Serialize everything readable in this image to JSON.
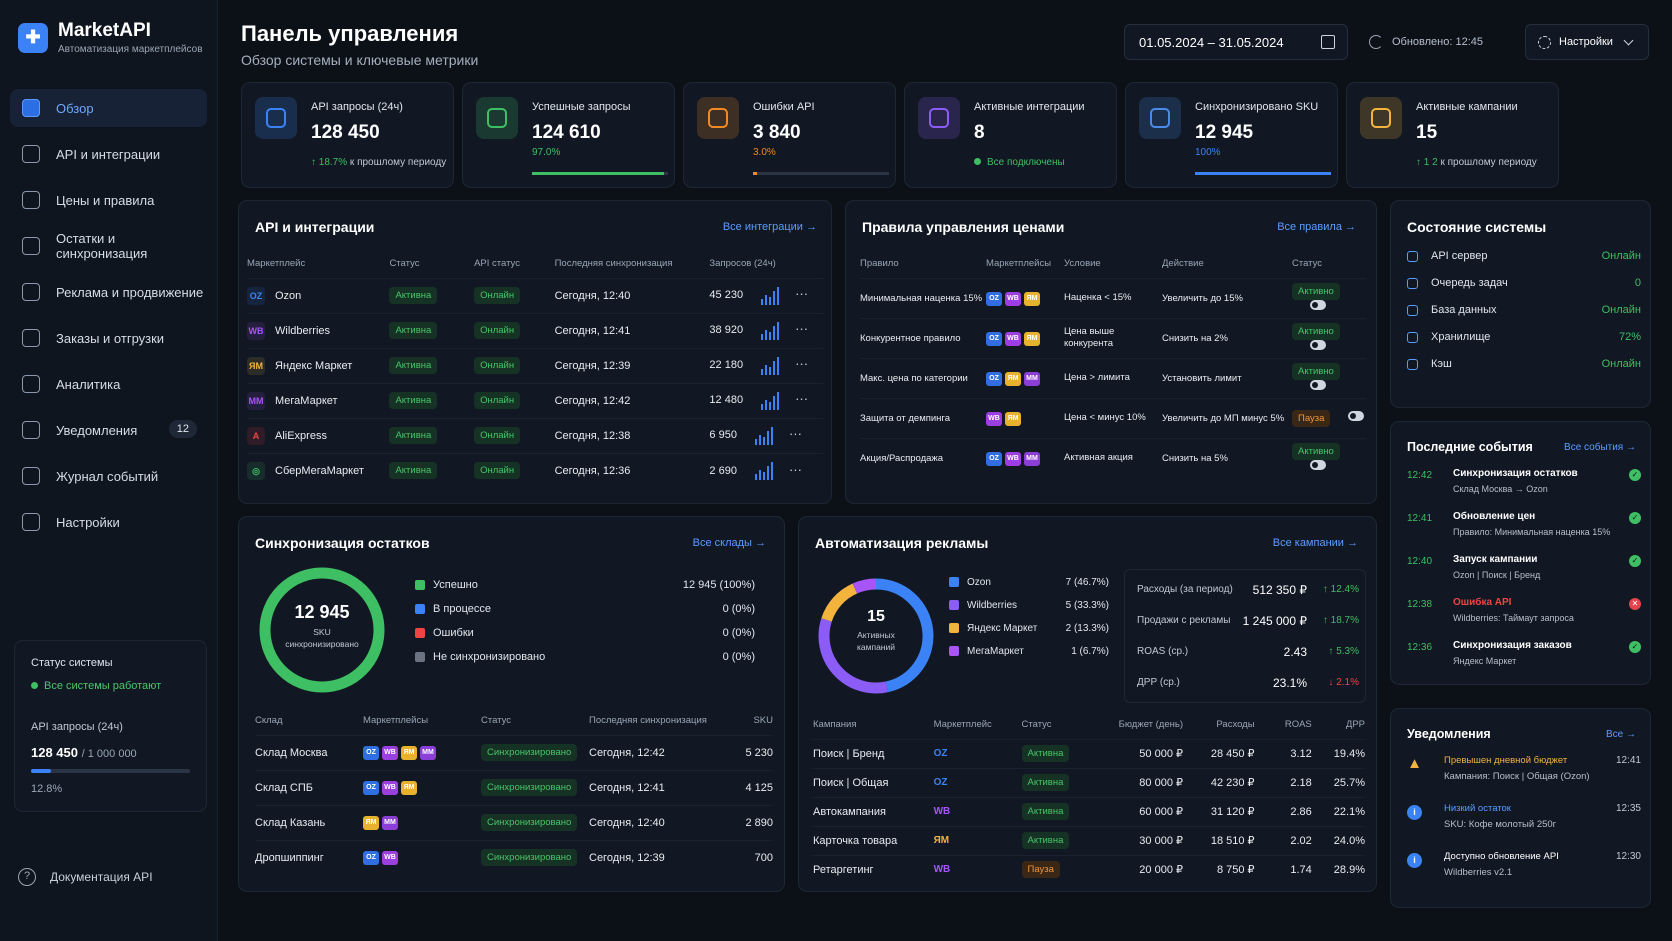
{
  "brand": {
    "name": "MarketAPI",
    "subtitle": "Автоматизация маркетплейсов"
  },
  "nav": [
    {
      "label": "Обзор",
      "icon": "dashboard-icon"
    },
    {
      "label": "API и интеграции",
      "icon": "api-icon"
    },
    {
      "label": "Цены и правила",
      "icon": "price-icon"
    },
    {
      "label": "Остатки и синхронизация",
      "icon": "sync-icon"
    },
    {
      "label": "Реклама и продвижение",
      "icon": "ads-icon"
    },
    {
      "label": "Заказы и отгрузки",
      "icon": "orders-icon"
    },
    {
      "label": "Аналитика",
      "icon": "analytics-icon"
    },
    {
      "label": "Уведомления",
      "icon": "bell-icon",
      "badge": "12"
    },
    {
      "label": "Журнал событий",
      "icon": "log-icon"
    },
    {
      "label": "Настройки",
      "icon": "gear-icon"
    }
  ],
  "sidebar_status": {
    "title": "Статус системы",
    "ok": "Все системы работают",
    "api_label": "API запросы (24ч)",
    "api_value": "128 450",
    "api_limit": "/ 1 000 000",
    "api_pct": "12.8%",
    "api_fraction": 0.128
  },
  "docs_label": "Документация API",
  "header": {
    "title": "Панель управления",
    "subtitle": "Обзор системы и ключевые метрики",
    "date_range": "01.05.2024 – 31.05.2024",
    "updated": "Обновлено: 12:45",
    "settings": "Настройки"
  },
  "kpis": [
    {
      "label": "API запросы (24ч)",
      "value": "128 450",
      "delta": "↑ 18.7%",
      "foot": "к прошлому периоду",
      "color": "#3b82f6",
      "icon": "chart-bar-icon"
    },
    {
      "label": "Успешные запросы",
      "value": "124 610",
      "pct": "97.0%",
      "fraction": 0.97,
      "bar_color": "#3fbf63",
      "color": "#3fbf63",
      "icon": "check-circle-icon"
    },
    {
      "label": "Ошибки API",
      "value": "3 840",
      "pct": "3.0%",
      "fraction": 0.03,
      "bar_color": "#f08a24",
      "color": "#f08a24",
      "icon": "bug-gear-icon"
    },
    {
      "label": "Активные интеграции",
      "value": "8",
      "foot_ok": "Все подключены",
      "color": "#8b5cf6",
      "icon": "bell-icon"
    },
    {
      "label": "Синхронизировано SKU",
      "value": "12 945",
      "pct": "100%",
      "fraction": 1.0,
      "bar_color": "#3b82f6",
      "color": "#4b8be8",
      "icon": "layers-icon"
    },
    {
      "label": "Активные кампании",
      "value": "15",
      "delta": "↑ 1 2",
      "foot": "к прошлому периоду",
      "color": "#f3b33d",
      "icon": "campaign-icon"
    }
  ],
  "integrations": {
    "title": "API и интеграции",
    "link": "Все интеграции →",
    "columns": [
      "Маркетплейс",
      "Статус",
      "API статус",
      "Последняя синхронизация",
      "Запросов (24ч)"
    ],
    "rows": [
      {
        "name": "Ozon",
        "logo": "OZ",
        "logo_color": "#3b82f6",
        "status": "Активна",
        "api": "Онлайн",
        "sync": "Сегодня, 12:40",
        "requests": "45 230"
      },
      {
        "name": "Wildberries",
        "logo": "WB",
        "logo_color": "#a855f7",
        "status": "Активна",
        "api": "Онлайн",
        "sync": "Сегодня, 12:41",
        "requests": "38 920"
      },
      {
        "name": "Яндекс Маркет",
        "logo": "ЯМ",
        "logo_color": "#f3b33d",
        "status": "Активна",
        "api": "Онлайн",
        "sync": "Сегодня, 12:39",
        "requests": "22 180"
      },
      {
        "name": "МегаМаркет",
        "logo": "MM",
        "logo_color": "#a855f7",
        "status": "Активна",
        "api": "Онлайн",
        "sync": "Сегодня, 12:42",
        "requests": "12 480"
      },
      {
        "name": "AliExpress",
        "logo": "A",
        "logo_color": "#ef4444",
        "status": "Активна",
        "api": "Онлайн",
        "sync": "Сегодня, 12:38",
        "requests": "6 950"
      },
      {
        "name": "СберМегаМаркет",
        "logo": "◎",
        "logo_color": "#3fbf63",
        "status": "Активна",
        "api": "Онлайн",
        "sync": "Сегодня, 12:36",
        "requests": "2 690"
      }
    ]
  },
  "pricing": {
    "title": "Правила управления ценами",
    "link": "Все правила →",
    "columns": [
      "Правило",
      "Маркетплейсы",
      "Условие",
      "Действие",
      "Статус"
    ],
    "rows": [
      {
        "rule": "Минимальная наценка 15%",
        "mps": [
          "OZ",
          "WB",
          "ЯМ"
        ],
        "cond": "Наценка < 15%",
        "action": "Увеличить до 15%",
        "status": "Активно"
      },
      {
        "rule": "Конкурентное правило",
        "mps": [
          "OZ",
          "WB",
          "ЯМ"
        ],
        "cond": "Цена выше конкурента",
        "action": "Снизить на 2%",
        "status": "Активно"
      },
      {
        "rule": "Макс. цена по категории",
        "mps": [
          "OZ",
          "ЯМ",
          "MM"
        ],
        "cond": "Цена > лимита",
        "action": "Установить лимит",
        "status": "Активно"
      },
      {
        "rule": "Защита от демпинга",
        "mps": [
          "WB",
          "ЯМ"
        ],
        "cond": "Цена < минус 10%",
        "action": "Увеличить до МП минус 5%",
        "status": "Пауза"
      },
      {
        "rule": "Акция/Распродажа",
        "mps": [
          "OZ",
          "WB",
          "MM"
        ],
        "cond": "Активная акция",
        "action": "Снизить на 5%",
        "status": "Активно"
      }
    ]
  },
  "system": {
    "title": "Состояние системы",
    "rows": [
      {
        "label": "API сервер",
        "value": "Онлайн"
      },
      {
        "label": "Очередь задач",
        "value": "0"
      },
      {
        "label": "База данных",
        "value": "Онлайн"
      },
      {
        "label": "Хранилище",
        "value": "72%"
      },
      {
        "label": "Кэш",
        "value": "Онлайн"
      }
    ]
  },
  "events": {
    "title": "Последние события",
    "link": "Все события →",
    "rows": [
      {
        "time": "12:42",
        "name": "Синхронизация остатков",
        "desc": "Склад Москва → Ozon",
        "ok": true
      },
      {
        "time": "12:41",
        "name": "Обновление цен",
        "desc": "Правило: Минимальная наценка 15%",
        "ok": true
      },
      {
        "time": "12:40",
        "name": "Запуск кампании",
        "desc": "Ozon | Поиск | Бренд",
        "ok": true
      },
      {
        "time": "12:38",
        "name": "Ошибка API",
        "desc": "Wildberries: Таймаут запроса",
        "ok": false
      },
      {
        "time": "12:36",
        "name": "Синхронизация заказов",
        "desc": "Яндекс Маркет",
        "ok": true
      }
    ]
  },
  "notifications": {
    "title": "Уведомления",
    "link": "Все →",
    "rows": [
      {
        "name": "Превышен дневной бюджет",
        "desc": "Кампания: Поиск | Общая (Ozon)",
        "time": "12:41",
        "type": "warn",
        "color": "#f3b33d"
      },
      {
        "name": "Низкий остаток",
        "desc": "SKU: Кофе молотый 250г",
        "time": "12:35",
        "type": "info",
        "color": "#5b9cff"
      },
      {
        "name": "Доступно обновление API",
        "desc": "Wildberries v2.1",
        "time": "12:30",
        "type": "info",
        "color": "#ffffff"
      }
    ]
  },
  "stock": {
    "title": "Синхронизация остатков",
    "link": "Все склады →",
    "donut_value": "12 945",
    "donut_label": "SKU синхронизировано",
    "legend": [
      {
        "label": "Успешно",
        "value": "12 945 (100%)",
        "color": "#3fbf63"
      },
      {
        "label": "В процессе",
        "value": "0 (0%)",
        "color": "#3b82f6"
      },
      {
        "label": "Ошибки",
        "value": "0 (0%)",
        "color": "#ef4444"
      },
      {
        "label": "Не синхронизировано",
        "value": "0 (0%)",
        "color": "#6b7280"
      }
    ],
    "columns": [
      "Склад",
      "Маркетплейсы",
      "Статус",
      "Последняя синхронизация",
      "SKU"
    ],
    "rows": [
      {
        "name": "Склад Москва",
        "mps": [
          "OZ",
          "WB",
          "ЯМ",
          "MM"
        ],
        "status": "Синхронизировано",
        "sync": "Сегодня, 12:42",
        "sku": "5 230"
      },
      {
        "name": "Склад СПБ",
        "mps": [
          "OZ",
          "WB",
          "ЯМ"
        ],
        "status": "Синхронизировано",
        "sync": "Сегодня, 12:41",
        "sku": "4 125"
      },
      {
        "name": "Склад Казань",
        "mps": [
          "ЯМ",
          "MM"
        ],
        "status": "Синхронизировано",
        "sync": "Сегодня, 12:40",
        "sku": "2 890"
      },
      {
        "name": "Дропшиппинг",
        "mps": [
          "OZ",
          "WB"
        ],
        "status": "Синхронизировано",
        "sync": "Сегодня, 12:39",
        "sku": "700"
      }
    ]
  },
  "ads": {
    "title": "Автоматизация рекламы",
    "link": "Все кампании →",
    "donut_value": "15",
    "donut_label": "Активных кампаний",
    "legend": [
      {
        "label": "Ozon",
        "value": "7 (46.7%)",
        "color": "#3b82f6",
        "share": 7
      },
      {
        "label": "Wildberries",
        "value": "5 (33.3%)",
        "color": "#8b5cf6",
        "share": 5
      },
      {
        "label": "Яндекс Маркет",
        "value": "2 (13.3%)",
        "color": "#f3b33d",
        "share": 2
      },
      {
        "label": "МегаМаркет",
        "value": "1 (6.7%)",
        "color": "#a855f7",
        "share": 1
      }
    ],
    "metrics": [
      {
        "label": "Расходы (за период)",
        "value": "512 350 ₽",
        "delta": "↑ 12.4%",
        "color": "#3fbf63"
      },
      {
        "label": "Продажи с рекламы",
        "value": "1 245 000 ₽",
        "delta": "↑ 18.7%",
        "color": "#3fbf63"
      },
      {
        "label": "ROAS (ср.)",
        "value": "2.43",
        "delta": "↑ 5.3%",
        "color": "#3fbf63"
      },
      {
        "label": "ДРР (ср.)",
        "value": "23.1%",
        "delta": "↓ 2.1%",
        "color": "#ef4444"
      }
    ],
    "columns": [
      "Кампания",
      "Маркетплейс",
      "Статус",
      "Бюджет (день)",
      "Расходы",
      "ROAS",
      "ДРР"
    ],
    "rows": [
      {
        "name": "Поиск | Бренд",
        "mp": "OZ",
        "mp_color": "#3b82f6",
        "status": "Активна",
        "budget": "50 000 ₽",
        "spend": "28 450 ₽",
        "roas": "3.12",
        "drr": "19.4%"
      },
      {
        "name": "Поиск | Общая",
        "mp": "OZ",
        "mp_color": "#3b82f6",
        "status": "Активна",
        "budget": "80 000 ₽",
        "spend": "42 230 ₽",
        "roas": "2.18",
        "drr": "25.7%"
      },
      {
        "name": "Автокампания",
        "mp": "WB",
        "mp_color": "#a855f7",
        "status": "Активна",
        "budget": "60 000 ₽",
        "spend": "31 120 ₽",
        "roas": "2.86",
        "drr": "22.1%"
      },
      {
        "name": "Карточка товара",
        "mp": "ЯМ",
        "mp_color": "#f3b33d",
        "status": "Активна",
        "budget": "30 000 ₽",
        "spend": "18 510 ₽",
        "roas": "2.02",
        "drr": "24.0%"
      },
      {
        "name": "Ретаргетинг",
        "mp": "WB",
        "mp_color": "#a855f7",
        "status": "Пауза",
        "budget": "20 000 ₽",
        "spend": "8 750 ₽",
        "roas": "1.74",
        "drr": "28.9%"
      }
    ]
  },
  "mp_colors": {
    "OZ": "#2f6fe0",
    "WB": "#9b3fe0",
    "ЯМ": "#e8b22f",
    "MM": "#8c3fd6"
  }
}
